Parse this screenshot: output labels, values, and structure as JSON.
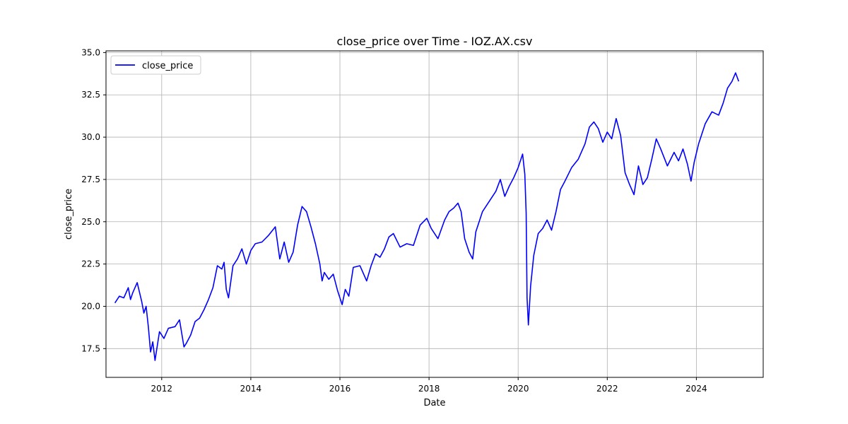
{
  "chart_data": {
    "type": "line",
    "title": "close_price over Time - IOZ.AX.csv",
    "xlabel": "Date",
    "ylabel": "close_price",
    "xlim": [
      2010.75,
      2025.5
    ],
    "ylim": [
      15.8,
      35.1
    ],
    "x_ticks": [
      2012,
      2014,
      2016,
      2018,
      2020,
      2022,
      2024
    ],
    "x_tick_labels": [
      "2012",
      "2014",
      "2016",
      "2018",
      "2020",
      "2022",
      "2024"
    ],
    "y_ticks": [
      17.5,
      20.0,
      22.5,
      25.0,
      27.5,
      30.0,
      32.5,
      35.0
    ],
    "y_tick_labels": [
      "17.5",
      "20.0",
      "22.5",
      "25.0",
      "27.5",
      "30.0",
      "32.5",
      "35.0"
    ],
    "grid": true,
    "legend": "top-left",
    "series": [
      {
        "name": "close_price",
        "color": "#0000ff",
        "x": [
          2010.95,
          2011.05,
          2011.15,
          2011.25,
          2011.3,
          2011.35,
          2011.45,
          2011.55,
          2011.6,
          2011.65,
          2011.7,
          2011.75,
          2011.8,
          2011.85,
          2011.95,
          2012.05,
          2012.15,
          2012.3,
          2012.4,
          2012.5,
          2012.55,
          2012.65,
          2012.75,
          2012.85,
          2012.95,
          2013.05,
          2013.15,
          2013.25,
          2013.35,
          2013.4,
          2013.45,
          2013.5,
          2013.6,
          2013.7,
          2013.8,
          2013.9,
          2014.0,
          2014.1,
          2014.25,
          2014.4,
          2014.55,
          2014.65,
          2014.75,
          2014.85,
          2014.95,
          2015.05,
          2015.15,
          2015.25,
          2015.35,
          2015.45,
          2015.55,
          2015.6,
          2015.65,
          2015.75,
          2015.85,
          2015.95,
          2016.05,
          2016.12,
          2016.2,
          2016.3,
          2016.45,
          2016.6,
          2016.7,
          2016.8,
          2016.9,
          2017.0,
          2017.1,
          2017.2,
          2017.35,
          2017.5,
          2017.65,
          2017.8,
          2017.95,
          2018.05,
          2018.2,
          2018.35,
          2018.45,
          2018.55,
          2018.65,
          2018.72,
          2018.8,
          2018.9,
          2018.98,
          2019.05,
          2019.2,
          2019.35,
          2019.5,
          2019.6,
          2019.7,
          2019.8,
          2019.9,
          2020.0,
          2020.1,
          2020.15,
          2020.18,
          2020.2,
          2020.23,
          2020.28,
          2020.35,
          2020.45,
          2020.55,
          2020.65,
          2020.75,
          2020.85,
          2020.95,
          2021.05,
          2021.2,
          2021.35,
          2021.5,
          2021.6,
          2021.7,
          2021.8,
          2021.9,
          2022.0,
          2022.1,
          2022.2,
          2022.3,
          2022.4,
          2022.5,
          2022.6,
          2022.7,
          2022.8,
          2022.9,
          2023.0,
          2023.1,
          2023.2,
          2023.35,
          2023.5,
          2023.6,
          2023.7,
          2023.8,
          2023.88,
          2023.95,
          2024.05,
          2024.2,
          2024.35,
          2024.5,
          2024.6,
          2024.7,
          2024.8,
          2024.88,
          2024.95
        ],
        "y": [
          20.2,
          20.6,
          20.5,
          21.1,
          20.4,
          20.8,
          21.4,
          20.3,
          19.6,
          20.0,
          18.8,
          17.3,
          17.9,
          16.8,
          18.5,
          18.1,
          18.7,
          18.8,
          19.2,
          17.6,
          17.8,
          18.3,
          19.1,
          19.3,
          19.8,
          20.4,
          21.1,
          22.4,
          22.2,
          22.6,
          21.0,
          20.5,
          22.4,
          22.8,
          23.4,
          22.5,
          23.3,
          23.7,
          23.8,
          24.2,
          24.7,
          22.8,
          23.8,
          22.6,
          23.2,
          24.8,
          25.9,
          25.6,
          24.7,
          23.7,
          22.5,
          21.5,
          22.0,
          21.6,
          21.9,
          20.9,
          20.1,
          21.0,
          20.6,
          22.3,
          22.4,
          21.5,
          22.4,
          23.1,
          22.9,
          23.4,
          24.1,
          24.3,
          23.5,
          23.7,
          23.6,
          24.8,
          25.2,
          24.6,
          24.0,
          25.1,
          25.6,
          25.8,
          26.1,
          25.6,
          24.0,
          23.2,
          22.8,
          24.4,
          25.6,
          26.2,
          26.8,
          27.5,
          26.5,
          27.1,
          27.6,
          28.2,
          29.0,
          27.8,
          25.5,
          20.5,
          18.9,
          21.2,
          23.0,
          24.3,
          24.6,
          25.1,
          24.5,
          25.6,
          26.9,
          27.4,
          28.2,
          28.7,
          29.6,
          30.6,
          30.9,
          30.5,
          29.7,
          30.3,
          29.9,
          31.1,
          30.1,
          27.9,
          27.2,
          26.6,
          28.3,
          27.2,
          27.6,
          28.7,
          29.9,
          29.3,
          28.3,
          29.1,
          28.6,
          29.3,
          28.4,
          27.4,
          28.5,
          29.6,
          30.8,
          31.5,
          31.3,
          32.0,
          32.9,
          33.3,
          33.8,
          33.3
        ]
      }
    ]
  }
}
